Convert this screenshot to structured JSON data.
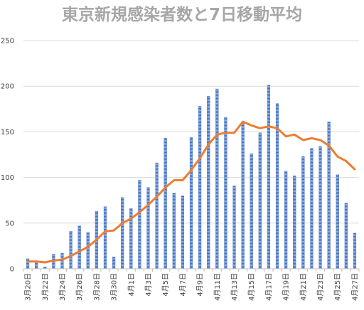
{
  "chart_data": {
    "type": "bar",
    "title": "東京新規感染者数と7日移動平均",
    "xlabel": "",
    "ylabel": "",
    "ylim": [
      0,
      250
    ],
    "yticks": [
      0,
      50,
      100,
      150,
      200,
      250
    ],
    "grid": true,
    "legend": "none",
    "categories": [
      "3月20日",
      "3月21日",
      "3月22日",
      "3月23日",
      "3月24日",
      "3月25日",
      "3月26日",
      "3月27日",
      "3月28日",
      "3月29日",
      "3月30日",
      "3月31日",
      "4月1日",
      "4月2日",
      "4月3日",
      "4月4日",
      "4月5日",
      "4月6日",
      "4月7日",
      "4月8日",
      "4月9日",
      "4月10日",
      "4月11日",
      "4月12日",
      "4月13日",
      "4月14日",
      "4月15日",
      "4月16日",
      "4月17日",
      "4月18日",
      "4月19日",
      "4月20日",
      "4月21日",
      "4月22日",
      "4月23日",
      "4月24日",
      "4月25日",
      "4月26日",
      "4月27日"
    ],
    "x_tick_labels": [
      "3月20日",
      "",
      "3月22日",
      "",
      "3月24日",
      "",
      "3月26日",
      "",
      "3月28日",
      "",
      "3月30日",
      "",
      "4月1日",
      "",
      "4月3日",
      "",
      "4月5日",
      "",
      "4月7日",
      "",
      "4月9日",
      "",
      "4月11日",
      "",
      "4月13日",
      "",
      "4月15日",
      "",
      "4月17日",
      "",
      "4月19日",
      "",
      "4月21日",
      "",
      "4月23日",
      "",
      "4月25日",
      "",
      "4月27日"
    ],
    "series": [
      {
        "type": "bar",
        "color": "#4472c4",
        "values": [
          11,
          7,
          2,
          16,
          17,
          41,
          47,
          40,
          63,
          68,
          13,
          78,
          66,
          97,
          89,
          116,
          143,
          83,
          80,
          144,
          178,
          189,
          197,
          166,
          91,
          161,
          126,
          149,
          201,
          181,
          107,
          102,
          123,
          132,
          134,
          161,
          103,
          72,
          39
        ]
      },
      {
        "type": "line",
        "color": "#ed7d31",
        "values": [
          8,
          8,
          7,
          9,
          10,
          14,
          19,
          24,
          32,
          41,
          42,
          50,
          55,
          62,
          70,
          79,
          89,
          97,
          97,
          108,
          121,
          136,
          147,
          149,
          149,
          161,
          157,
          154,
          156,
          154,
          145,
          147,
          141,
          143,
          141,
          135,
          123,
          118,
          109
        ]
      }
    ]
  }
}
